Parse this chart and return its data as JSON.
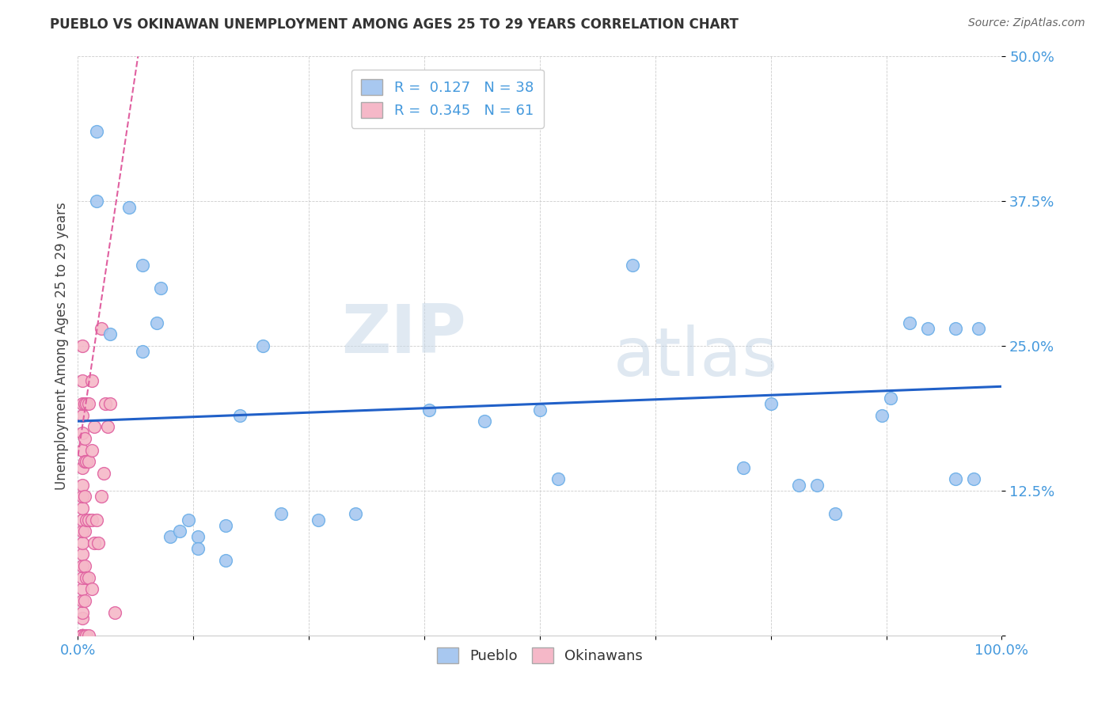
{
  "title": "PUEBLO VS OKINAWAN UNEMPLOYMENT AMONG AGES 25 TO 29 YEARS CORRELATION CHART",
  "source": "Source: ZipAtlas.com",
  "ylabel": "Unemployment Among Ages 25 to 29 years",
  "xlim": [
    0,
    1.0
  ],
  "ylim": [
    0,
    0.5
  ],
  "xticks": [
    0.0,
    0.125,
    0.25,
    0.375,
    0.5,
    0.625,
    0.75,
    0.875,
    1.0
  ],
  "xticklabels": [
    "0.0%",
    "",
    "",
    "",
    "",
    "",
    "",
    "",
    "100.0%"
  ],
  "yticks": [
    0.0,
    0.125,
    0.25,
    0.375,
    0.5
  ],
  "yticklabels": [
    "",
    "12.5%",
    "25.0%",
    "37.5%",
    "50.0%"
  ],
  "pueblo_color": "#a8c8f0",
  "pueblo_edge": "#6aaee8",
  "okinawan_color": "#f5b8c8",
  "okinawan_edge": "#e060a0",
  "trend_pueblo_color": "#2060c8",
  "trend_okinawan_color": "#e060a0",
  "legend_R_pueblo": "0.127",
  "legend_N_pueblo": "38",
  "legend_R_okinawan": "0.345",
  "legend_N_okinawan": "61",
  "watermark_zip": "ZIP",
  "watermark_atlas": "atlas",
  "pueblo_x": [
    0.02,
    0.02,
    0.035,
    0.055,
    0.07,
    0.07,
    0.085,
    0.09,
    0.1,
    0.11,
    0.12,
    0.13,
    0.13,
    0.16,
    0.16,
    0.175,
    0.2,
    0.22,
    0.26,
    0.3,
    0.38,
    0.44,
    0.5,
    0.52,
    0.6,
    0.72,
    0.75,
    0.78,
    0.8,
    0.82,
    0.87,
    0.88,
    0.9,
    0.92,
    0.95,
    0.95,
    0.97,
    0.975
  ],
  "pueblo_y": [
    0.435,
    0.375,
    0.26,
    0.37,
    0.32,
    0.245,
    0.27,
    0.3,
    0.085,
    0.09,
    0.1,
    0.085,
    0.075,
    0.095,
    0.065,
    0.19,
    0.25,
    0.105,
    0.1,
    0.105,
    0.195,
    0.185,
    0.195,
    0.135,
    0.32,
    0.145,
    0.2,
    0.13,
    0.13,
    0.105,
    0.19,
    0.205,
    0.27,
    0.265,
    0.265,
    0.135,
    0.135,
    0.265
  ],
  "okinawan_x": [
    0.005,
    0.005,
    0.005,
    0.005,
    0.005,
    0.005,
    0.005,
    0.005,
    0.005,
    0.005,
    0.005,
    0.005,
    0.005,
    0.005,
    0.005,
    0.005,
    0.005,
    0.005,
    0.005,
    0.005,
    0.005,
    0.005,
    0.005,
    0.005,
    0.005,
    0.005,
    0.005,
    0.005,
    0.007,
    0.007,
    0.007,
    0.007,
    0.007,
    0.007,
    0.007,
    0.007,
    0.009,
    0.009,
    0.009,
    0.009,
    0.009,
    0.012,
    0.012,
    0.012,
    0.012,
    0.012,
    0.015,
    0.015,
    0.015,
    0.015,
    0.018,
    0.018,
    0.02,
    0.022,
    0.025,
    0.025,
    0.028,
    0.03,
    0.032,
    0.035,
    0.04
  ],
  "okinawan_y": [
    0.0,
    0.0,
    0.0,
    0.0,
    0.0,
    0.0,
    0.0,
    0.0,
    0.015,
    0.02,
    0.03,
    0.04,
    0.05,
    0.06,
    0.07,
    0.08,
    0.09,
    0.1,
    0.11,
    0.12,
    0.13,
    0.145,
    0.16,
    0.175,
    0.19,
    0.2,
    0.22,
    0.25,
    0.0,
    0.03,
    0.06,
    0.09,
    0.12,
    0.15,
    0.17,
    0.2,
    0.0,
    0.05,
    0.1,
    0.15,
    0.2,
    0.0,
    0.05,
    0.1,
    0.15,
    0.2,
    0.04,
    0.1,
    0.16,
    0.22,
    0.08,
    0.18,
    0.1,
    0.08,
    0.12,
    0.265,
    0.14,
    0.2,
    0.18,
    0.2,
    0.02
  ]
}
